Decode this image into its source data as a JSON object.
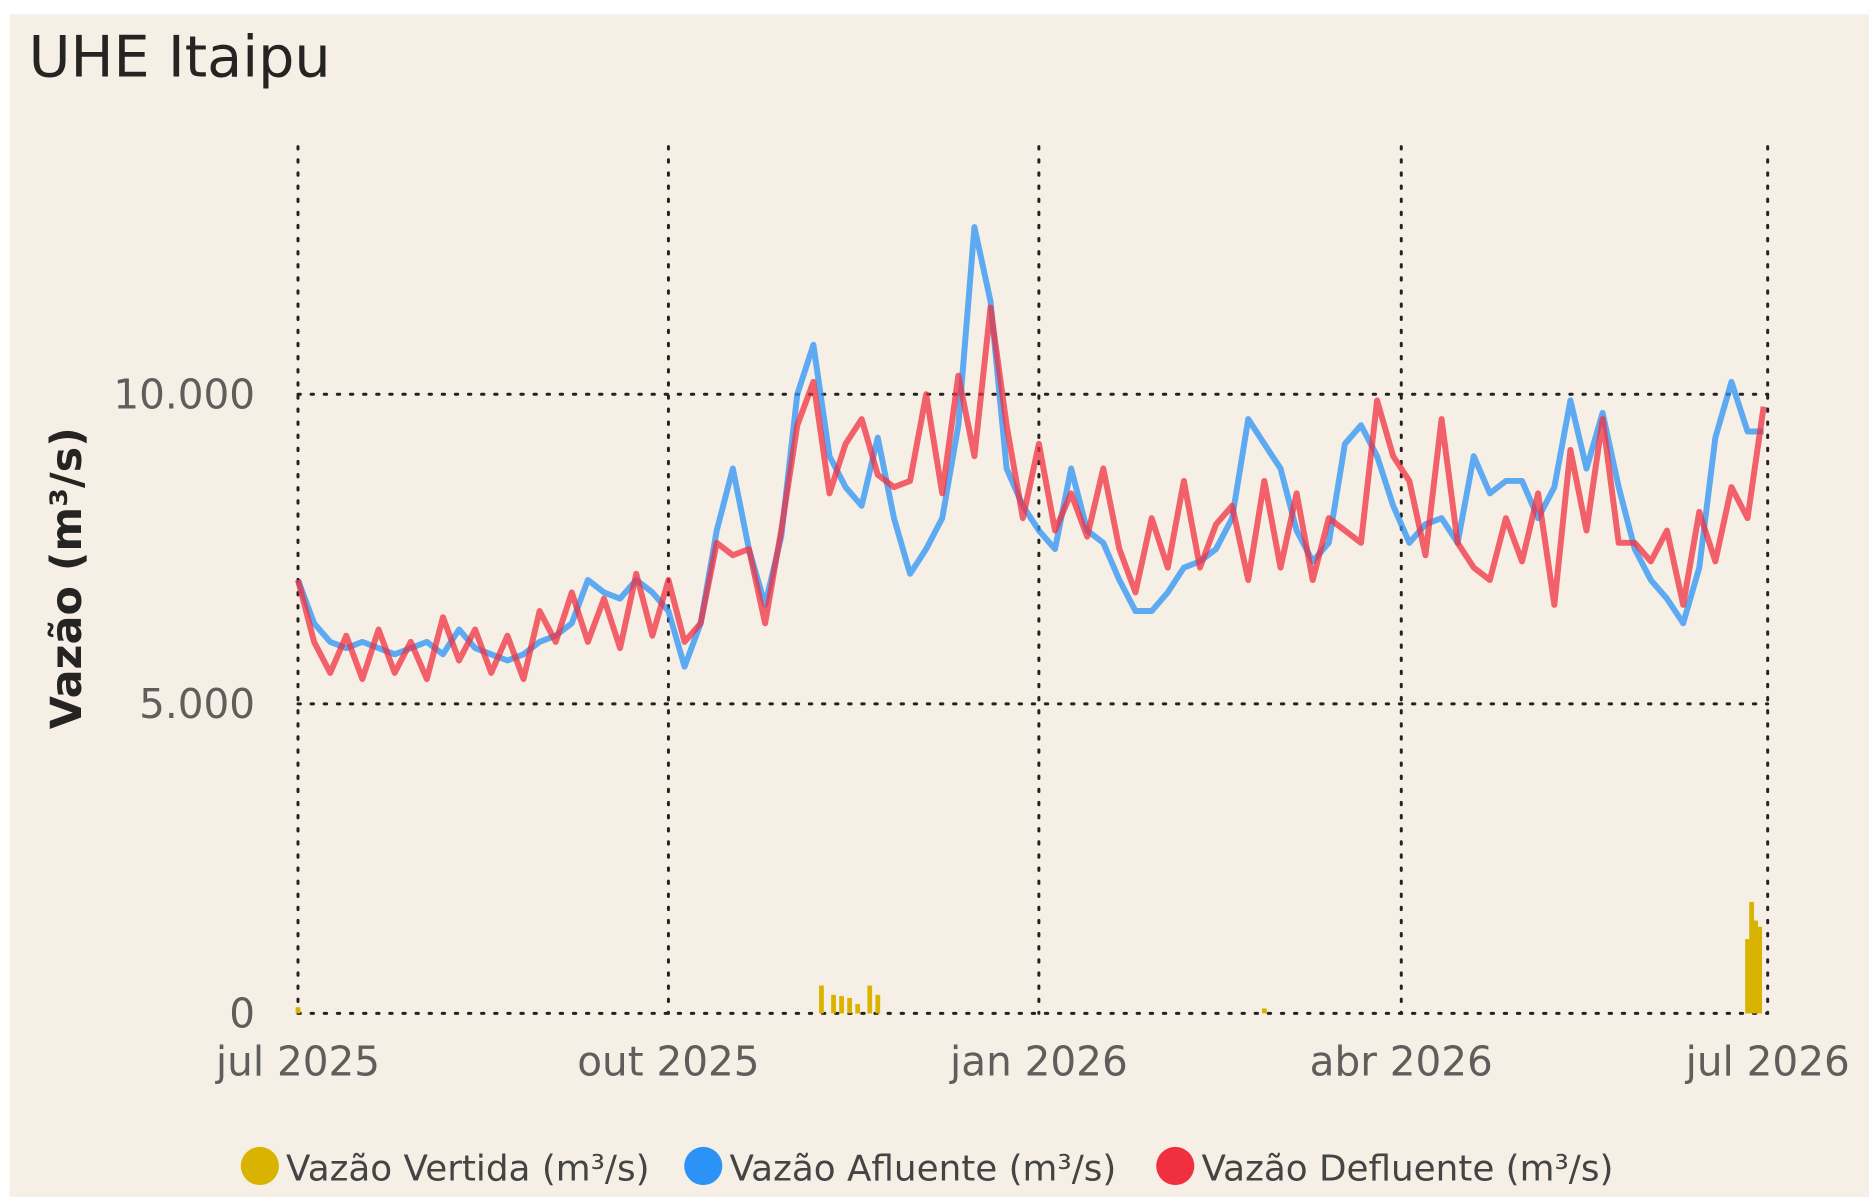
{
  "chart_data": {
    "type": "line",
    "title": "UHE Itaipu",
    "y_label": "Vazão (m³/s)",
    "ylim": [
      0,
      14000
    ],
    "yticks": [
      0,
      {
        "value": 5000,
        "label": "5.000"
      },
      {
        "value": 10000,
        "label": "10.000"
      }
    ],
    "xlim": [
      0,
      365
    ],
    "xticks": [
      {
        "value": 0,
        "label": "jul 2025"
      },
      {
        "value": 92,
        "label": "out 2025"
      },
      {
        "value": 184,
        "label": "jan 2026"
      },
      {
        "value": 274,
        "label": "abr 2026"
      },
      {
        "value": 365,
        "label": "jul 2026"
      }
    ],
    "grid": true,
    "legend": "bottom",
    "x": [
      0,
      4,
      8,
      12,
      16,
      20,
      24,
      28,
      32,
      36,
      40,
      44,
      48,
      52,
      56,
      60,
      64,
      68,
      72,
      76,
      80,
      84,
      88,
      92,
      96,
      100,
      104,
      108,
      112,
      116,
      120,
      124,
      128,
      132,
      136,
      140,
      144,
      148,
      152,
      156,
      160,
      164,
      168,
      172,
      176,
      180,
      184,
      188,
      192,
      196,
      200,
      204,
      208,
      212,
      216,
      220,
      224,
      228,
      232,
      236,
      240,
      244,
      248,
      252,
      256,
      260,
      264,
      268,
      272,
      276,
      280,
      284,
      288,
      292,
      296,
      300,
      304,
      308,
      312,
      316,
      320,
      324,
      328,
      332,
      336,
      340,
      344,
      348,
      352,
      356,
      360,
      364
    ],
    "series": [
      {
        "name": "Vazão Vertida (m³/s)",
        "color": "#d9b300",
        "kind": "bar",
        "x": [
          0,
          130,
          133,
          135,
          137,
          139,
          142,
          144,
          240,
          360,
          361,
          362,
          363
        ],
        "values": [
          100,
          450,
          300,
          280,
          250,
          150,
          450,
          300,
          80,
          1200,
          1800,
          1500,
          1400
        ]
      },
      {
        "name": "Vazão Afluente (m³/s)",
        "color": "#2b93f5",
        "kind": "line",
        "values": [
          7000,
          6300,
          6000,
          5900,
          6000,
          5900,
          5800,
          5900,
          6000,
          5800,
          6200,
          5900,
          5800,
          5700,
          5800,
          6000,
          6100,
          6300,
          7000,
          6800,
          6700,
          7000,
          6800,
          6500,
          5600,
          6300,
          7800,
          8800,
          7500,
          6600,
          7700,
          10000,
          10800,
          9000,
          8500,
          8200,
          9300,
          8000,
          7100,
          7500,
          8000,
          9500,
          12700,
          11500,
          8800,
          8200,
          7800,
          7500,
          8800,
          7800,
          7600,
          7000,
          6500,
          6500,
          6800,
          7200,
          7300,
          7500,
          8000,
          9600,
          9200,
          8800,
          7800,
          7300,
          7600,
          9200,
          9500,
          9000,
          8200,
          7600,
          7900,
          8000,
          7600,
          9000,
          8400,
          8600,
          8600,
          8000,
          8500,
          9900,
          8800,
          9700,
          8500,
          7500,
          7000,
          6700,
          6300,
          7200,
          9300,
          10200,
          9400,
          9400
        ]
      },
      {
        "name": "Vazão Defluente (m³/s)",
        "color": "#f0303f",
        "kind": "line",
        "values": [
          7000,
          6000,
          5500,
          6100,
          5400,
          6200,
          5500,
          6000,
          5400,
          6400,
          5700,
          6200,
          5500,
          6100,
          5400,
          6500,
          6000,
          6800,
          6000,
          6700,
          5900,
          7100,
          6100,
          7000,
          6000,
          6300,
          7600,
          7400,
          7500,
          6300,
          7800,
          9500,
          10200,
          8400,
          9200,
          9600,
          8700,
          8500,
          8600,
          10000,
          8400,
          10300,
          9000,
          11400,
          9500,
          8000,
          9200,
          7800,
          8400,
          7700,
          8800,
          7500,
          6800,
          8000,
          7200,
          8600,
          7200,
          7900,
          8200,
          7000,
          8600,
          7200,
          8400,
          7000,
          8000,
          7800,
          7600,
          9900,
          9000,
          8600,
          7400,
          9600,
          7600,
          7200,
          7000,
          8000,
          7300,
          8400,
          6600,
          9100,
          7800,
          9600,
          7600,
          7600,
          7300,
          7800,
          6600,
          8100,
          7300,
          8500,
          8000,
          9800
        ]
      }
    ]
  }
}
